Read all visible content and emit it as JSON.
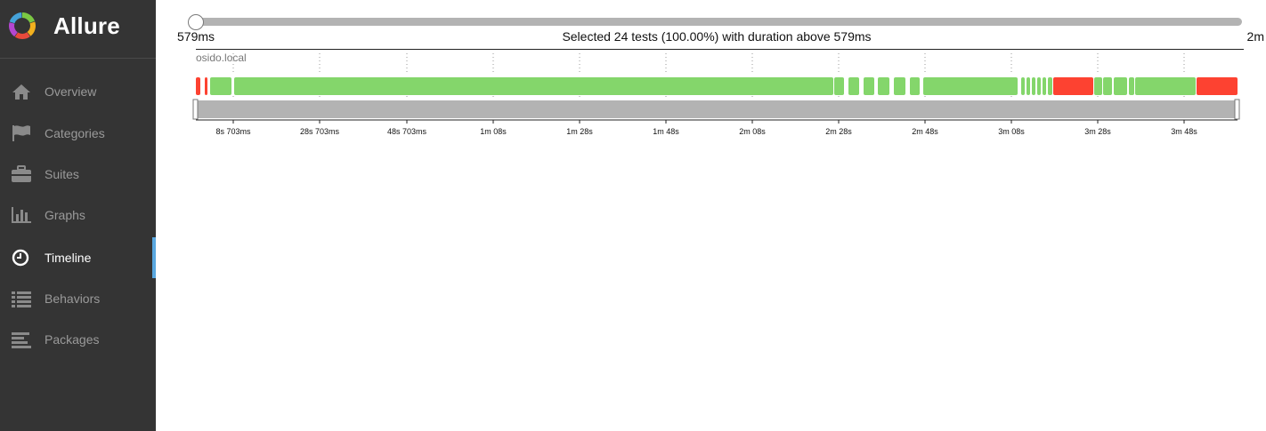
{
  "brand": {
    "name": "Allure",
    "logo_colors": [
      "#7bc843",
      "#f2b01e",
      "#e94a3c",
      "#b447d1",
      "#45a2d9"
    ]
  },
  "nav": {
    "active_color": "#5aa8e0",
    "items": [
      {
        "label": "Overview",
        "icon": "home-icon",
        "active": false
      },
      {
        "label": "Categories",
        "icon": "flag-icon",
        "active": false
      },
      {
        "label": "Suites",
        "icon": "briefcase-icon",
        "active": false
      },
      {
        "label": "Graphs",
        "icon": "bar-chart-icon",
        "active": false
      },
      {
        "label": "Timeline",
        "icon": "clock-icon",
        "active": true
      },
      {
        "label": "Behaviors",
        "icon": "list-icon",
        "active": false
      },
      {
        "label": "Packages",
        "icon": "align-left-icon",
        "active": false
      }
    ]
  },
  "timeline": {
    "slider_min_label": "579ms",
    "slider_max_label": "2m",
    "summary": "Selected 24 tests (100.00%) with duration above 579ms",
    "host": "osido.local",
    "colors": {
      "passed": "#84d66b",
      "failed": "#fd4231",
      "brush": "#b3b3b3"
    },
    "ticks": [
      "8s 703ms",
      "28s 703ms",
      "48s 703ms",
      "1m 08s",
      "1m 28s",
      "1m 48s",
      "2m 08s",
      "2m 28s",
      "2m 48s",
      "3m 08s",
      "3m 28s",
      "3m 48s"
    ]
  }
}
